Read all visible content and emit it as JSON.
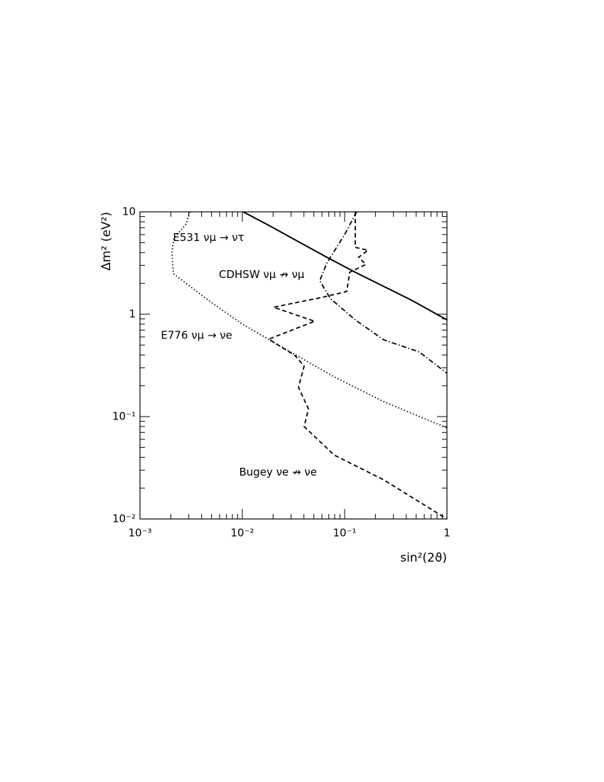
{
  "chart_data": {
    "type": "line",
    "xlabel": "sin²(2ϑ)",
    "ylabel": "Δm² (eV²)",
    "xscale": "log",
    "yscale": "log",
    "xlim": [
      0.001,
      1
    ],
    "ylim": [
      0.01,
      10
    ],
    "xticks": [
      {
        "value": 0.001,
        "label": "10⁻³"
      },
      {
        "value": 0.01,
        "label": "10⁻²"
      },
      {
        "value": 0.1,
        "label": "10⁻¹"
      },
      1
    ],
    "yticks": [
      {
        "value": 0.01,
        "label": "10⁻²"
      },
      {
        "value": 0.1,
        "label": "10⁻¹"
      },
      1,
      10
    ],
    "series": [
      {
        "color": "#000000",
        "dash": "solid",
        "x": [
          0.0102,
          0.0187,
          0.0354,
          0.067,
          0.127,
          0.241,
          0.457,
          1
        ],
        "values": [
          10,
          7.26,
          5.11,
          3.6,
          2.57,
          1.87,
          1.36,
          0.88
        ]
      },
      {
        "color": "#000000",
        "dash": "dotted",
        "x": [
          0.00306,
          0.00283,
          0.00215,
          0.00205,
          0.00212,
          0.00443,
          0.0098,
          0.0257,
          0.0787,
          0.241,
          1
        ],
        "values": [
          10,
          7.62,
          5.53,
          4.02,
          2.49,
          1.42,
          0.81,
          0.464,
          0.245,
          0.14,
          0.0774
        ]
      },
      {
        "color": "#000000",
        "dash": "dashdot",
        "x": [
          0.131,
          0.1,
          0.067,
          0.0571,
          0.0727,
          0.127,
          0.241,
          0.536,
          1
        ],
        "values": [
          10,
          6.0,
          3.16,
          2.12,
          1.42,
          0.88,
          0.562,
          0.428,
          0.265
        ]
      },
      {
        "color": "#000000",
        "dash": "dashed",
        "x": [
          0.127,
          0.127,
          0.169,
          0.137,
          0.161,
          0.112,
          0.105,
          0.0619,
          0.0202,
          0.051,
          0.0181,
          0.0327,
          0.0402,
          0.0354,
          0.0443,
          0.0402,
          0.0787,
          0.241,
          1
        ],
        "values": [
          10,
          4.5,
          4.22,
          3.6,
          3.06,
          2.57,
          1.67,
          1.47,
          1.17,
          0.853,
          0.571,
          0.395,
          0.311,
          0.193,
          0.119,
          0.08,
          0.0422,
          0.0241,
          0.01
        ]
      }
    ],
    "annotations": [
      {
        "text": "E531 νμ → ντ",
        "x": 0.0021,
        "y": 5.6
      },
      {
        "text": "CDHSW νμ ↛ νμ",
        "x": 0.0059,
        "y": 2.43
      },
      {
        "text": "E776 νμ → νe",
        "x": 0.0016,
        "y": 0.62
      },
      {
        "text": "Bugey νe ↛ νe",
        "x": 0.0093,
        "y": 0.0285
      }
    ]
  }
}
